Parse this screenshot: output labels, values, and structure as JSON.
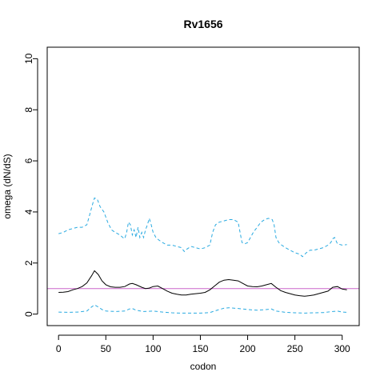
{
  "chart_data": {
    "type": "line",
    "title": "Rv1656",
    "xlabel": "codon",
    "ylabel": "omega (dN/dS)",
    "xlim": [
      -12,
      318
    ],
    "ylim": [
      -0.45,
      10.45
    ],
    "xticks": [
      0,
      50,
      100,
      150,
      200,
      250,
      300
    ],
    "yticks": [
      0,
      2,
      4,
      6,
      8,
      10
    ],
    "grid": false,
    "reference_line": {
      "y": 1,
      "color": "#cc66cc"
    },
    "series": [
      {
        "role": "estimate",
        "color": "#000000",
        "dash": "solid",
        "points": [
          [
            0,
            0.85
          ],
          [
            5,
            0.86
          ],
          [
            10,
            0.88
          ],
          [
            15,
            0.95
          ],
          [
            20,
            1.0
          ],
          [
            25,
            1.08
          ],
          [
            30,
            1.22
          ],
          [
            35,
            1.5
          ],
          [
            38,
            1.7
          ],
          [
            42,
            1.55
          ],
          [
            46,
            1.3
          ],
          [
            50,
            1.15
          ],
          [
            55,
            1.07
          ],
          [
            60,
            1.05
          ],
          [
            65,
            1.05
          ],
          [
            70,
            1.08
          ],
          [
            75,
            1.18
          ],
          [
            78,
            1.2
          ],
          [
            82,
            1.15
          ],
          [
            88,
            1.05
          ],
          [
            92,
            1.0
          ],
          [
            96,
            1.02
          ],
          [
            100,
            1.08
          ],
          [
            105,
            1.1
          ],
          [
            110,
            1.0
          ],
          [
            115,
            0.9
          ],
          [
            120,
            0.82
          ],
          [
            125,
            0.78
          ],
          [
            130,
            0.75
          ],
          [
            135,
            0.75
          ],
          [
            140,
            0.78
          ],
          [
            145,
            0.8
          ],
          [
            150,
            0.82
          ],
          [
            155,
            0.85
          ],
          [
            160,
            0.95
          ],
          [
            165,
            1.1
          ],
          [
            170,
            1.25
          ],
          [
            175,
            1.33
          ],
          [
            180,
            1.35
          ],
          [
            185,
            1.33
          ],
          [
            190,
            1.3
          ],
          [
            195,
            1.2
          ],
          [
            200,
            1.1
          ],
          [
            205,
            1.08
          ],
          [
            210,
            1.07
          ],
          [
            215,
            1.1
          ],
          [
            220,
            1.15
          ],
          [
            225,
            1.2
          ],
          [
            230,
            1.05
          ],
          [
            235,
            0.92
          ],
          [
            240,
            0.85
          ],
          [
            245,
            0.8
          ],
          [
            250,
            0.75
          ],
          [
            255,
            0.72
          ],
          [
            260,
            0.7
          ],
          [
            265,
            0.72
          ],
          [
            270,
            0.75
          ],
          [
            275,
            0.8
          ],
          [
            280,
            0.85
          ],
          [
            285,
            0.9
          ],
          [
            290,
            1.05
          ],
          [
            295,
            1.08
          ],
          [
            300,
            0.98
          ],
          [
            305,
            0.95
          ]
        ]
      },
      {
        "role": "upper-bound",
        "color": "#29aae1",
        "dash": "dashed",
        "points": [
          [
            0,
            3.15
          ],
          [
            5,
            3.2
          ],
          [
            10,
            3.3
          ],
          [
            15,
            3.35
          ],
          [
            20,
            3.4
          ],
          [
            25,
            3.4
          ],
          [
            30,
            3.5
          ],
          [
            33,
            3.9
          ],
          [
            36,
            4.3
          ],
          [
            38,
            4.55
          ],
          [
            41,
            4.5
          ],
          [
            44,
            4.2
          ],
          [
            48,
            4.0
          ],
          [
            52,
            3.6
          ],
          [
            56,
            3.3
          ],
          [
            60,
            3.2
          ],
          [
            65,
            3.1
          ],
          [
            68,
            3.0
          ],
          [
            70,
            2.95
          ],
          [
            72,
            3.2
          ],
          [
            74,
            3.6
          ],
          [
            76,
            3.5
          ],
          [
            78,
            3.1
          ],
          [
            80,
            3.3
          ],
          [
            82,
            3.0
          ],
          [
            84,
            3.4
          ],
          [
            86,
            3.0
          ],
          [
            88,
            3.2
          ],
          [
            90,
            3.0
          ],
          [
            92,
            3.3
          ],
          [
            94,
            3.5
          ],
          [
            96,
            3.75
          ],
          [
            98,
            3.5
          ],
          [
            100,
            3.2
          ],
          [
            103,
            3.0
          ],
          [
            106,
            2.9
          ],
          [
            110,
            2.8
          ],
          [
            115,
            2.7
          ],
          [
            120,
            2.7
          ],
          [
            125,
            2.65
          ],
          [
            130,
            2.6
          ],
          [
            133,
            2.45
          ],
          [
            136,
            2.55
          ],
          [
            140,
            2.65
          ],
          [
            145,
            2.6
          ],
          [
            150,
            2.55
          ],
          [
            155,
            2.6
          ],
          [
            160,
            2.7
          ],
          [
            163,
            3.2
          ],
          [
            166,
            3.5
          ],
          [
            170,
            3.6
          ],
          [
            175,
            3.65
          ],
          [
            180,
            3.7
          ],
          [
            185,
            3.7
          ],
          [
            190,
            3.6
          ],
          [
            192,
            3.2
          ],
          [
            194,
            2.8
          ],
          [
            197,
            2.75
          ],
          [
            200,
            2.8
          ],
          [
            203,
            3.0
          ],
          [
            206,
            3.2
          ],
          [
            210,
            3.4
          ],
          [
            214,
            3.6
          ],
          [
            218,
            3.7
          ],
          [
            222,
            3.75
          ],
          [
            226,
            3.7
          ],
          [
            228,
            3.5
          ],
          [
            230,
            3.0
          ],
          [
            233,
            2.8
          ],
          [
            236,
            2.7
          ],
          [
            240,
            2.6
          ],
          [
            245,
            2.5
          ],
          [
            250,
            2.4
          ],
          [
            255,
            2.35
          ],
          [
            258,
            2.25
          ],
          [
            262,
            2.4
          ],
          [
            266,
            2.5
          ],
          [
            270,
            2.5
          ],
          [
            275,
            2.55
          ],
          [
            280,
            2.6
          ],
          [
            285,
            2.7
          ],
          [
            288,
            2.8
          ],
          [
            290,
            2.95
          ],
          [
            292,
            3.0
          ],
          [
            295,
            2.75
          ],
          [
            300,
            2.7
          ],
          [
            305,
            2.72
          ]
        ]
      },
      {
        "role": "lower-bound",
        "color": "#29aae1",
        "dash": "dashed",
        "points": [
          [
            0,
            0.08
          ],
          [
            10,
            0.07
          ],
          [
            20,
            0.08
          ],
          [
            30,
            0.12
          ],
          [
            35,
            0.28
          ],
          [
            38,
            0.36
          ],
          [
            42,
            0.28
          ],
          [
            46,
            0.18
          ],
          [
            50,
            0.12
          ],
          [
            60,
            0.1
          ],
          [
            70,
            0.12
          ],
          [
            75,
            0.2
          ],
          [
            78,
            0.22
          ],
          [
            82,
            0.15
          ],
          [
            90,
            0.1
          ],
          [
            100,
            0.12
          ],
          [
            110,
            0.08
          ],
          [
            120,
            0.05
          ],
          [
            130,
            0.04
          ],
          [
            140,
            0.04
          ],
          [
            150,
            0.04
          ],
          [
            160,
            0.06
          ],
          [
            170,
            0.18
          ],
          [
            175,
            0.23
          ],
          [
            180,
            0.25
          ],
          [
            190,
            0.22
          ],
          [
            200,
            0.18
          ],
          [
            210,
            0.15
          ],
          [
            220,
            0.18
          ],
          [
            225,
            0.2
          ],
          [
            230,
            0.12
          ],
          [
            240,
            0.07
          ],
          [
            250,
            0.05
          ],
          [
            260,
            0.04
          ],
          [
            270,
            0.05
          ],
          [
            280,
            0.06
          ],
          [
            290,
            0.1
          ],
          [
            295,
            0.12
          ],
          [
            300,
            0.08
          ],
          [
            305,
            0.07
          ]
        ]
      }
    ]
  }
}
